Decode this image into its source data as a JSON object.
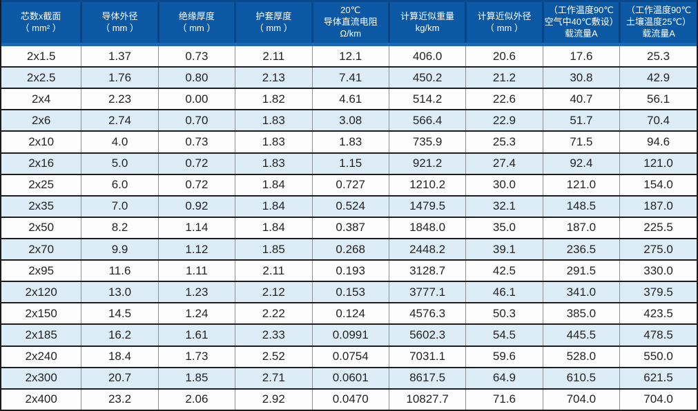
{
  "table": {
    "columns": [
      {
        "id": "cores_x_section",
        "header_lines": [
          "芯数x截面",
          "（ mm² ）"
        ]
      },
      {
        "id": "conductor_od",
        "header_lines": [
          "导体外径",
          "（ mm ）"
        ]
      },
      {
        "id": "insulation_thickness",
        "header_lines": [
          "绝缘厚度",
          "（ mm ）"
        ]
      },
      {
        "id": "sheath_thickness",
        "header_lines": [
          "护套厚度",
          "（ mm ）"
        ]
      },
      {
        "id": "dc_resistance_20c",
        "header_lines": [
          "20℃",
          "导体直流电阻",
          "Ω/km"
        ]
      },
      {
        "id": "approx_weight",
        "header_lines": [
          "计算近似重量",
          "kg/km"
        ]
      },
      {
        "id": "approx_od",
        "header_lines": [
          "计算近似外径",
          "（ mm ）"
        ]
      },
      {
        "id": "ampacity_air",
        "header_lines": [
          "（工作温度90℃",
          "空气中40℃敷设）",
          "载流量A"
        ]
      },
      {
        "id": "ampacity_soil",
        "header_lines": [
          "（工作温度90℃",
          "土壤温度25℃）",
          "载流量A"
        ]
      }
    ],
    "rows": [
      [
        "2x1.5",
        "1.37",
        "0.73",
        "2.11",
        "12.1",
        "406.0",
        "20.6",
        "17.6",
        "25.3"
      ],
      [
        "2x2.5",
        "1.76",
        "0.80",
        "2.13",
        "7.41",
        "450.2",
        "21.2",
        "30.8",
        "42.9"
      ],
      [
        "2x4",
        "2.23",
        "0.00",
        "1.82",
        "4.61",
        "514.2",
        "22.6",
        "40.7",
        "56.1"
      ],
      [
        "2x6",
        "2.74",
        "0.70",
        "1.83",
        "3.08",
        "566.4",
        "22.9",
        "51.7",
        "70.4"
      ],
      [
        "2x10",
        "4.0",
        "0.73",
        "1.83",
        "1.83",
        "735.9",
        "25.3",
        "71.5",
        "94.6"
      ],
      [
        "2x16",
        "5.0",
        "0.72",
        "1.83",
        "1.15",
        "921.2",
        "27.4",
        "92.4",
        "121.0"
      ],
      [
        "2x25",
        "6.0",
        "0.72",
        "1.84",
        "0.727",
        "1210.2",
        "30.0",
        "121.0",
        "154.0"
      ],
      [
        "2x35",
        "7.0",
        "0.92",
        "1.84",
        "0.524",
        "1479.5",
        "32.1",
        "148.5",
        "187.0"
      ],
      [
        "2x50",
        "8.2",
        "1.14",
        "1.84",
        "0.387",
        "1848.0",
        "35.0",
        "187.0",
        "225.5"
      ],
      [
        "2x70",
        "9.9",
        "1.12",
        "1.85",
        "0.268",
        "2448.2",
        "39.1",
        "236.5",
        "275.0"
      ],
      [
        "2x95",
        "11.6",
        "1.11",
        "2.11",
        "0.193",
        "3128.7",
        "42.5",
        "291.5",
        "330.0"
      ],
      [
        "2x120",
        "13.0",
        "1.23",
        "2.12",
        "0.153",
        "3777.1",
        "46.1",
        "341.0",
        "379.5"
      ],
      [
        "2x150",
        "14.5",
        "1.24",
        "2.22",
        "0.124",
        "4576.3",
        "50.3",
        "385.0",
        "423.5"
      ],
      [
        "2x185",
        "16.2",
        "1.61",
        "2.33",
        "0.0991",
        "5602.3",
        "54.5",
        "445.5",
        "478.5"
      ],
      [
        "2x240",
        "18.4",
        "1.73",
        "2.52",
        "0.0754",
        "7031.1",
        "59.6",
        "528.0",
        "550.0"
      ],
      [
        "2x300",
        "20.7",
        "1.85",
        "2.71",
        "0.0601",
        "8617.5",
        "64.9",
        "610.5",
        "621.5"
      ],
      [
        "2x400",
        "23.2",
        "2.06",
        "2.92",
        "0.0470",
        "10827.7",
        "71.6",
        "704.0",
        "704.0"
      ]
    ]
  },
  "colors": {
    "header_bg": "#0b58a5",
    "header_band": "#1b69b6",
    "header_separator": "#0a4480",
    "header_top_line": "#09498e",
    "row_bg": "#fdfdfd",
    "row_alt_bg": "#dcedf8",
    "grid_horizontal": "#1c1c1c",
    "grid_vertical": "#8f8f8f",
    "header_text": "#ffffff",
    "cell_text": "#222222"
  }
}
